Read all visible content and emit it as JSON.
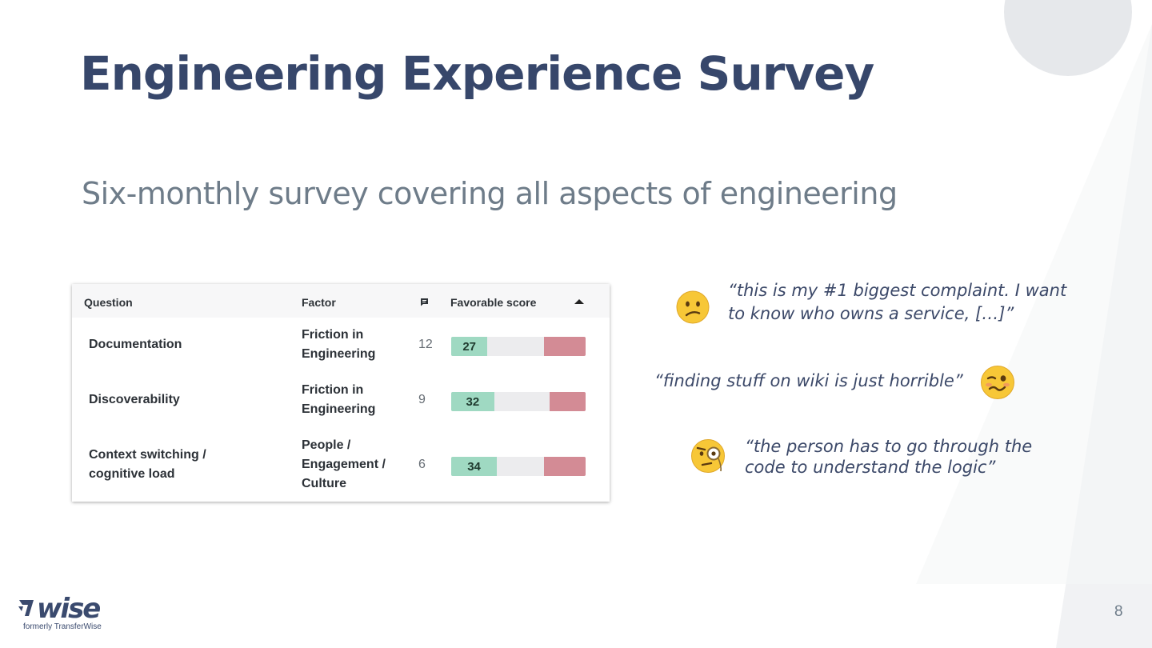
{
  "slide": {
    "title": "Engineering Experience Survey",
    "subtitle": "Six-monthly survey covering all aspects of engineering",
    "page_number": "8"
  },
  "table": {
    "headers": {
      "question": "Question",
      "factor": "Factor",
      "comments_icon": "comment-icon",
      "score": "Favorable score",
      "sort_icon": "sort-ascending-icon"
    },
    "rows": [
      {
        "question": [
          "Documentation"
        ],
        "factor": [
          "Friction in",
          "Engineering"
        ],
        "comments": "12",
        "favorable": 27,
        "unfavorable": 31
      },
      {
        "question": [
          "Discoverability"
        ],
        "factor": [
          "Friction in",
          "Engineering"
        ],
        "comments": "9",
        "favorable": 32,
        "unfavorable": 27
      },
      {
        "question": [
          "Context switching /",
          "cognitive load"
        ],
        "factor": [
          "People /",
          "Engagement /",
          "Culture"
        ],
        "comments": "6",
        "favorable": 34,
        "unfavorable": 31
      }
    ],
    "colors": {
      "favorable": "#9fd9c2",
      "unfavorable": "#d38b95",
      "neutral": "#ececee"
    }
  },
  "quotes": [
    {
      "lines": [
        "“this is my #1 biggest complaint. I want",
        "to know who owns a service, […]”"
      ],
      "emoji": "confused-face-icon"
    },
    {
      "lines": [
        "“finding stuff on wiki is just horrible”"
      ],
      "emoji": "woozy-face-icon"
    },
    {
      "lines": [
        "“the person has to go through the",
        "code to understand the logic”"
      ],
      "emoji": "face-with-monocle-icon"
    }
  ],
  "logo": {
    "word": "wise",
    "tagline": "formerly TransferWise"
  },
  "colors": {
    "title": "#37476b",
    "subtitle": "#6e7c89"
  }
}
